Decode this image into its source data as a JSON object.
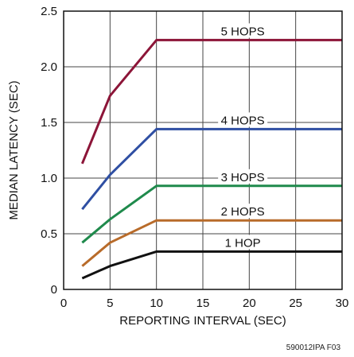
{
  "chart_data": {
    "type": "line",
    "xlabel": "REPORTING INTERVAL (SEC)",
    "ylabel": "MEDIAN LATENCY (SEC)",
    "xlim": [
      0,
      30
    ],
    "ylim": [
      0,
      2.5
    ],
    "xticks": [
      0,
      5,
      10,
      15,
      20,
      25,
      30
    ],
    "yticks": [
      0,
      0.5,
      1.0,
      1.5,
      2.0,
      2.5
    ],
    "xtick_labels": [
      "0",
      "5",
      "10",
      "15",
      "20",
      "25",
      "30"
    ],
    "ytick_labels": [
      "0",
      "0.5",
      "1.0",
      "1.5",
      "2.0",
      "2.5"
    ],
    "grid": true,
    "series": [
      {
        "name": "5 HOPS",
        "color": "#8c1538",
        "x": [
          2,
          5,
          10,
          30
        ],
        "y": [
          1.13,
          1.74,
          2.24,
          2.24
        ]
      },
      {
        "name": "4 HOPS",
        "color": "#2f4fa3",
        "x": [
          2,
          5,
          10,
          30
        ],
        "y": [
          0.72,
          1.03,
          1.44,
          1.44
        ]
      },
      {
        "name": "3 HOPS",
        "color": "#1f8a4c",
        "x": [
          2,
          5,
          10,
          30
        ],
        "y": [
          0.42,
          0.63,
          0.93,
          0.93
        ]
      },
      {
        "name": "2 HOPS",
        "color": "#b86b2a",
        "x": [
          2,
          5,
          10,
          30
        ],
        "y": [
          0.21,
          0.42,
          0.62,
          0.62
        ]
      },
      {
        "name": "1 HOP",
        "color": "#111111",
        "x": [
          2,
          5,
          10,
          30
        ],
        "y": [
          0.1,
          0.21,
          0.34,
          0.34
        ]
      }
    ]
  },
  "figure_id": "590012IPA F03"
}
